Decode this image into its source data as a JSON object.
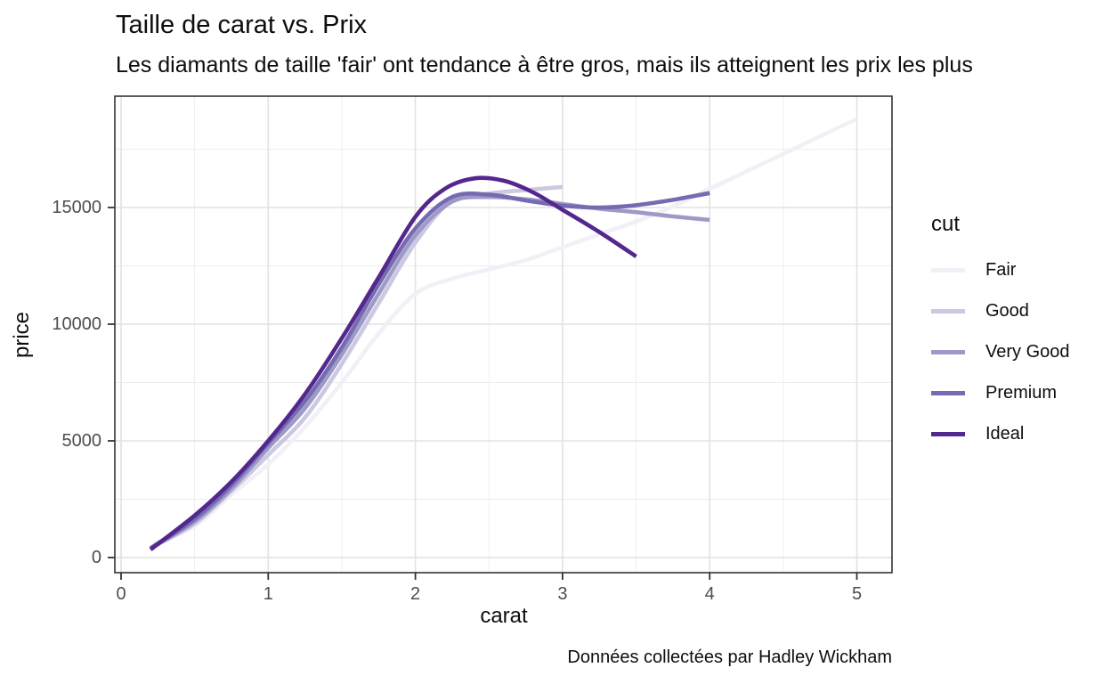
{
  "title": "Taille de carat vs. Prix",
  "subtitle": "Les diamants de taille 'fair' ont tendance à être gros, mais ils atteignent les prix les plus",
  "caption": "Données collectées par Hadley Wickham",
  "axes": {
    "x_label": "carat",
    "y_label": "price"
  },
  "legend": {
    "title": "cut",
    "position": "right"
  },
  "colors": {
    "grid_major": "#e2e2e2",
    "grid_minor": "#ededed",
    "panel_border": "#333333",
    "tick_mark": "#333333",
    "tick_label": "#4d4d4d"
  },
  "chart_data": {
    "type": "line",
    "title": "Taille de carat vs. Prix",
    "subtitle": "Les diamants de taille 'fair' ont tendance à être gros, mais ils atteignent les prix les plus",
    "caption": "Données collectées par Hadley Wickham",
    "xlabel": "carat",
    "ylabel": "price",
    "xlim": [
      0,
      5.25
    ],
    "ylim": [
      0,
      19600
    ],
    "x_ticks": [
      0,
      1,
      2,
      3,
      4,
      5
    ],
    "y_ticks": [
      0,
      5000,
      10000,
      15000
    ],
    "grid": true,
    "legend_title": "cut",
    "legend_position": "right",
    "legend_entries": [
      "Fair",
      "Good",
      "Very Good",
      "Premium",
      "Ideal"
    ],
    "series": [
      {
        "name": "Fair",
        "color": "#F2F0F7",
        "points": [
          [
            0.22,
            600
          ],
          [
            0.5,
            1350
          ],
          [
            0.75,
            2700
          ],
          [
            1.0,
            4000
          ],
          [
            1.25,
            5600
          ],
          [
            1.5,
            7500
          ],
          [
            1.75,
            9600
          ],
          [
            2.0,
            11300
          ],
          [
            2.25,
            11950
          ],
          [
            2.5,
            12350
          ],
          [
            2.75,
            12750
          ],
          [
            3.0,
            13300
          ],
          [
            3.25,
            13850
          ],
          [
            3.5,
            14400
          ],
          [
            3.75,
            15050
          ],
          [
            4.0,
            15800
          ],
          [
            4.25,
            16550
          ],
          [
            4.5,
            17300
          ],
          [
            4.75,
            18050
          ],
          [
            5.0,
            18800
          ]
        ]
      },
      {
        "name": "Good",
        "color": "#CBC9E2",
        "points": [
          [
            0.23,
            500
          ],
          [
            0.5,
            1450
          ],
          [
            0.75,
            2850
          ],
          [
            1.0,
            4400
          ],
          [
            1.25,
            6000
          ],
          [
            1.5,
            8300
          ],
          [
            1.75,
            10900
          ],
          [
            2.0,
            13500
          ],
          [
            2.25,
            15300
          ],
          [
            2.5,
            15600
          ],
          [
            2.75,
            15750
          ],
          [
            3.0,
            15880
          ]
        ]
      },
      {
        "name": "Very Good",
        "color": "#9E9AC8",
        "points": [
          [
            0.2,
            400
          ],
          [
            0.5,
            1550
          ],
          [
            0.75,
            2950
          ],
          [
            1.0,
            4700
          ],
          [
            1.25,
            6400
          ],
          [
            1.5,
            8700
          ],
          [
            1.75,
            11300
          ],
          [
            2.0,
            13800
          ],
          [
            2.25,
            15250
          ],
          [
            2.5,
            15450
          ],
          [
            2.75,
            15350
          ],
          [
            3.0,
            15150
          ],
          [
            3.25,
            14950
          ],
          [
            3.5,
            14800
          ],
          [
            3.75,
            14620
          ],
          [
            4.0,
            14470
          ]
        ]
      },
      {
        "name": "Premium",
        "color": "#756BB1",
        "points": [
          [
            0.2,
            400
          ],
          [
            0.5,
            1650
          ],
          [
            0.75,
            3100
          ],
          [
            1.0,
            4900
          ],
          [
            1.25,
            6700
          ],
          [
            1.5,
            9000
          ],
          [
            1.75,
            11700
          ],
          [
            2.0,
            14100
          ],
          [
            2.25,
            15450
          ],
          [
            2.5,
            15550
          ],
          [
            2.75,
            15300
          ],
          [
            3.0,
            15080
          ],
          [
            3.25,
            15000
          ],
          [
            3.5,
            15100
          ],
          [
            3.75,
            15330
          ],
          [
            4.0,
            15620
          ]
        ]
      },
      {
        "name": "Ideal",
        "color": "#54278F",
        "points": [
          [
            0.2,
            340
          ],
          [
            0.5,
            1800
          ],
          [
            0.75,
            3250
          ],
          [
            1.0,
            5000
          ],
          [
            1.25,
            7000
          ],
          [
            1.5,
            9400
          ],
          [
            1.75,
            12000
          ],
          [
            2.0,
            14600
          ],
          [
            2.2,
            15800
          ],
          [
            2.4,
            16250
          ],
          [
            2.6,
            16150
          ],
          [
            2.8,
            15650
          ],
          [
            3.0,
            14900
          ],
          [
            3.25,
            13950
          ],
          [
            3.5,
            12900
          ]
        ]
      }
    ]
  }
}
